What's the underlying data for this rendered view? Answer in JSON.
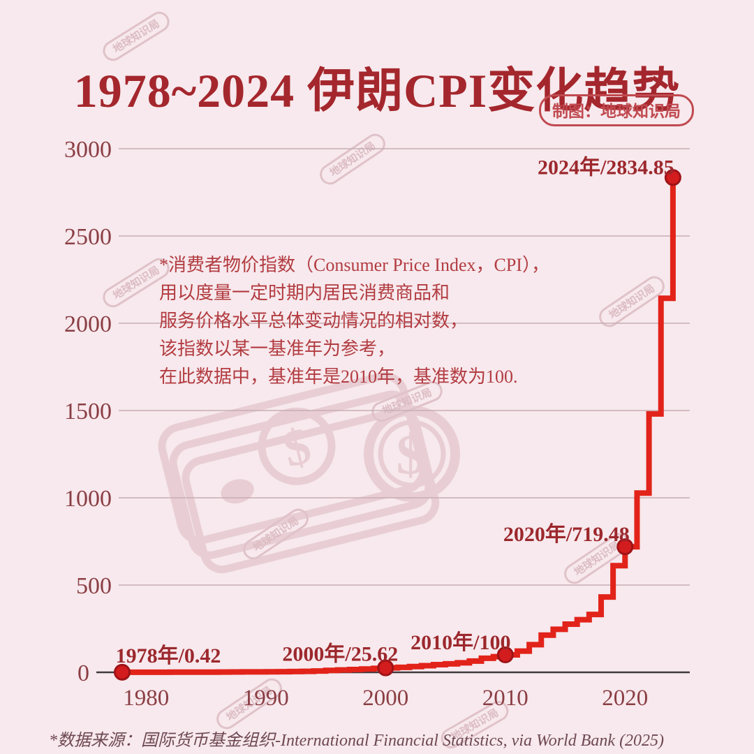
{
  "page": {
    "title": "1978~2024 伊朗CPI变化趋势",
    "credit_badge": "制图：地球知识局",
    "source_note": "*数据来源：国际货币基金组织-International Financial Statistics, via World Bank (2025)"
  },
  "annotation": {
    "lines": [
      "*消费者物价指数（Consumer Price Index，CPI），",
      "用以度量一定时期内居民消费商品和",
      "服务价格水平总体变动情况的相对数，",
      "该指数以某一基准年为参考，",
      "在此数据中，基准年是2010年，基准数为100."
    ]
  },
  "watermark": {
    "text": "地球知识局",
    "money_icon": "banknote-stack-and-dollar-coin"
  },
  "colors": {
    "background": "#f7e9ed",
    "title_red": "#a4272d",
    "badge_red": "#c04a50",
    "tick_brown_red": "#8a3e44",
    "label_dark_red": "#9c282d",
    "annotation_red": "#b23c41",
    "footer_plum": "#6e4853",
    "gridline": "#c7aeb4",
    "axis_dark": "#3f3a3e",
    "line_red": "#e2231a",
    "dot_fill": "#d31c1e",
    "dot_stroke": "#9e1317",
    "watermark_pink": "#e8ced4"
  },
  "chart_data": {
    "type": "line",
    "step": true,
    "title": "1978~2024 伊朗CPI变化趋势",
    "xlabel": "",
    "ylabel": "",
    "x": [
      1978,
      1979,
      1980,
      1981,
      1982,
      1983,
      1984,
      1985,
      1986,
      1987,
      1988,
      1989,
      1990,
      1991,
      1992,
      1993,
      1994,
      1995,
      1996,
      1997,
      1998,
      1999,
      2000,
      2001,
      2002,
      2003,
      2004,
      2005,
      2006,
      2007,
      2008,
      2009,
      2010,
      2011,
      2012,
      2013,
      2014,
      2015,
      2016,
      2017,
      2018,
      2019,
      2020,
      2021,
      2022,
      2023,
      2024
    ],
    "values": [
      0.42,
      0.47,
      0.57,
      0.7,
      0.84,
      0.96,
      1.07,
      1.14,
      1.41,
      1.8,
      2.32,
      2.72,
      2.97,
      3.58,
      4.46,
      5.47,
      7.39,
      11.07,
      13.65,
      16.01,
      18.9,
      22.7,
      25.62,
      28.55,
      33.05,
      38.22,
      43.97,
      48.53,
      54.28,
      64.33,
      80.73,
      89.45,
      100,
      121.46,
      158.64,
      213.15,
      246.44,
      275.9,
      301.4,
      331.6,
      431.4,
      611.2,
      719.48,
      1027.1,
      1480.5,
      2143.2,
      2834.85
    ],
    "xticks": [
      1980,
      1990,
      2000,
      2010,
      2020
    ],
    "yticks": [
      0,
      500,
      1000,
      1500,
      2000,
      2500,
      3000
    ],
    "xlim": [
      1978,
      2025.5
    ],
    "ylim": [
      0,
      3000
    ],
    "grid": true,
    "legend": "none",
    "highlights": [
      {
        "year": 1978,
        "value": 0.42,
        "label": "1978年/0.42"
      },
      {
        "year": 2000,
        "value": 25.62,
        "label": "2000年/25.62"
      },
      {
        "year": 2010,
        "value": 100,
        "label": "2010年/100"
      },
      {
        "year": 2020,
        "value": 719.48,
        "label": "2020年/719.48"
      },
      {
        "year": 2024,
        "value": 2834.85,
        "label": "2024年/2834.85"
      }
    ]
  }
}
